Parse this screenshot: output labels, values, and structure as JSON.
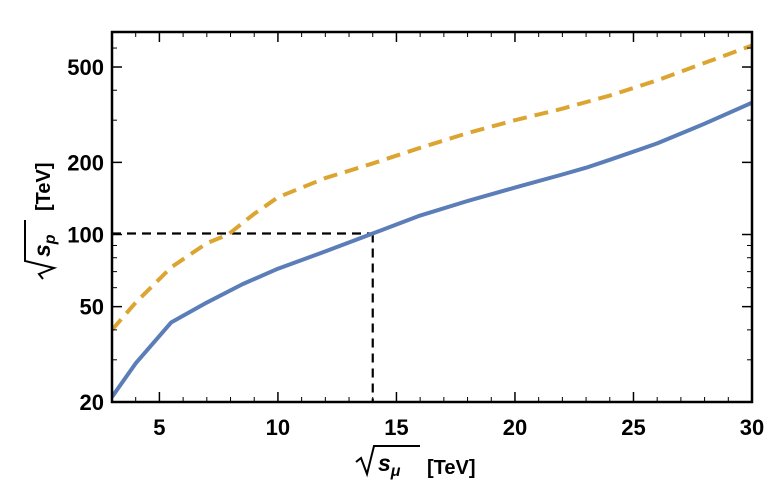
{
  "chart_data": {
    "type": "line",
    "title": "",
    "xlabel": {
      "symbol": "s",
      "subscript": "μ",
      "unit": "[TeV]"
    },
    "ylabel": {
      "symbol": "s",
      "subscript": "p",
      "unit": "[TeV]"
    },
    "xlim": [
      3,
      30
    ],
    "ylim": [
      20,
      700
    ],
    "yscale": "log",
    "grid": false,
    "legend": "none",
    "xticks": [
      5,
      10,
      15,
      20,
      25,
      30
    ],
    "xtick_labels": [
      "5",
      "10",
      "15",
      "20",
      "25",
      "30"
    ],
    "yticks": [
      20,
      50,
      100,
      200,
      500
    ],
    "ytick_labels": [
      "20",
      "50",
      "100",
      "200",
      "500"
    ],
    "series": [
      {
        "color": "#5b7db8",
        "style": "solid",
        "x": [
          3,
          4,
          5.5,
          7,
          8.5,
          10,
          12,
          14,
          16,
          18,
          20,
          22,
          23,
          24,
          26,
          28,
          30
        ],
        "y": [
          21,
          29,
          43,
          52,
          62,
          72,
          85,
          101,
          120,
          138,
          157,
          178,
          190,
          205,
          240,
          290,
          355
        ]
      },
      {
        "color": "#dca532",
        "style": "dashed",
        "x": [
          3,
          4,
          5.5,
          7,
          7.9,
          9,
          10,
          12,
          14,
          16,
          18,
          20,
          22,
          24,
          26,
          28,
          30
        ],
        "y": [
          40,
          52,
          73,
          92,
          100,
          122,
          143,
          172,
          198,
          230,
          265,
          300,
          335,
          380,
          440,
          520,
          615
        ]
      }
    ],
    "annotations": [
      {
        "type": "dashed-guide",
        "x": 14,
        "y": 101,
        "color": "#000000"
      }
    ]
  }
}
